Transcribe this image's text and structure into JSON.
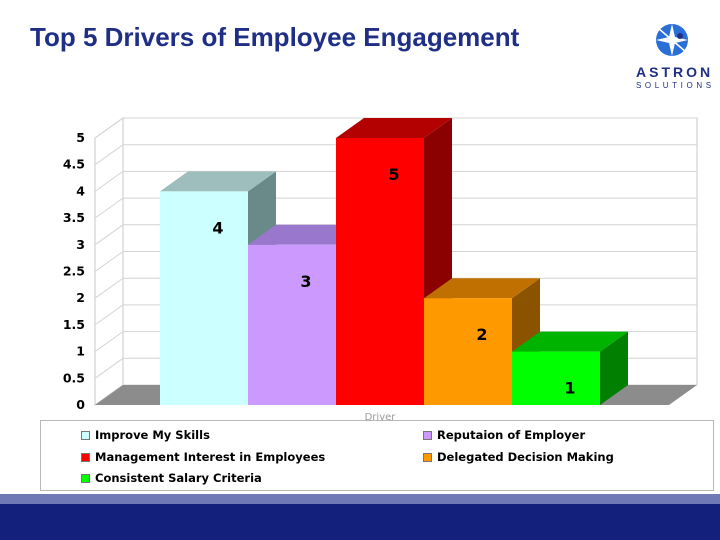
{
  "slide": {
    "title": "Top 5 Drivers of Employee Engagement"
  },
  "logo": {
    "name": "ASTRON",
    "tagline": "SOLUTIONS",
    "icon": "astron-starburst-logo",
    "color": "#1f2f86",
    "accent": "#2a6fd6"
  },
  "colors": {
    "footer": "#13207c",
    "footer_stripe": "#6e79b5",
    "title": "#1f2f86"
  },
  "chart_data": {
    "type": "bar",
    "style": "3d-column",
    "title": "",
    "xlabel": "Driver",
    "ylabel": "",
    "ylim": [
      0,
      5
    ],
    "yticks": [
      "0",
      "0.5",
      "1",
      "1.5",
      "2",
      "2.5",
      "3",
      "3.5",
      "4",
      "4.5",
      "5"
    ],
    "grid": true,
    "legend_position": "bottom",
    "series": [
      {
        "name": "Improve My Skills",
        "value": 4,
        "label": "4",
        "color": "#ccffff",
        "side": "#6a8a8a",
        "top": "#9ebdbd"
      },
      {
        "name": "Reputaion of Employer",
        "value": 3,
        "label": "3",
        "color": "#cc99ff",
        "side": "#6c4c9c",
        "top": "#9977cc"
      },
      {
        "name": "Management Interest in Employees",
        "value": 5,
        "label": "5",
        "color": "#ff0000",
        "side": "#8b0000",
        "top": "#b30000"
      },
      {
        "name": "Delegated Decision Making",
        "value": 2,
        "label": "2",
        "color": "#ff9900",
        "side": "#8b5200",
        "top": "#c07000"
      },
      {
        "name": "Consistent Salary Criteria",
        "value": 1,
        "label": "1",
        "color": "#00ff00",
        "side": "#007f00",
        "top": "#00b300"
      }
    ]
  }
}
